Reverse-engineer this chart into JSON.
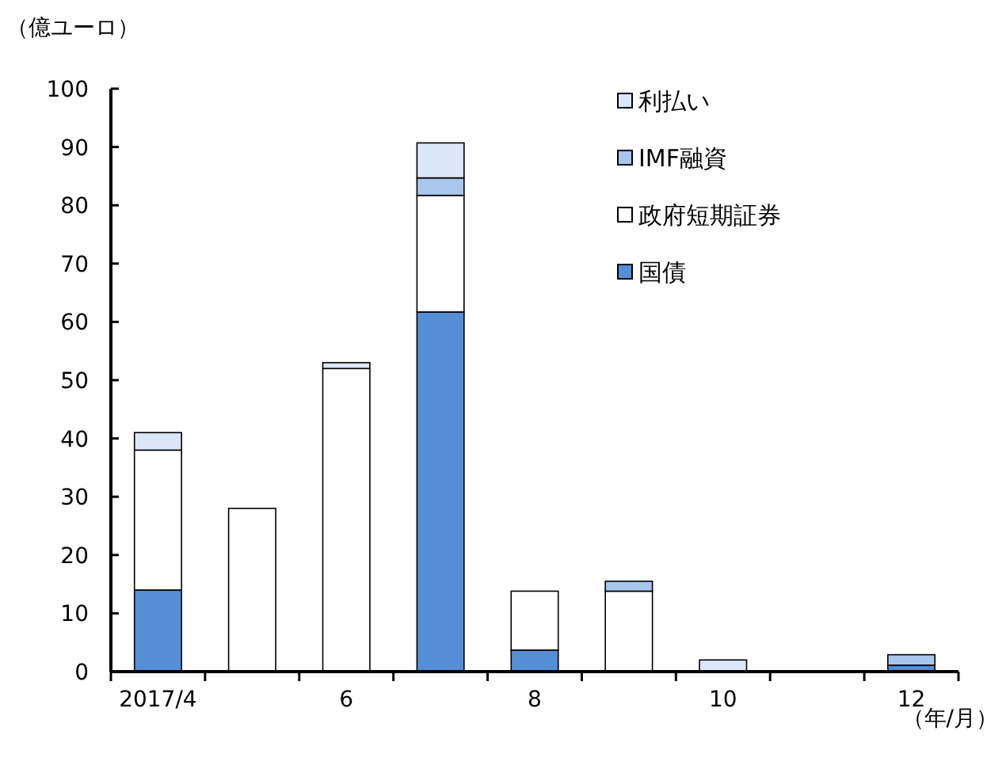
{
  "chart_data": {
    "type": "bar",
    "stacked": true,
    "ylabel": "（億ユーロ）",
    "xlabel": "（年/月）",
    "categories": [
      "2017/4",
      null,
      "6",
      null,
      "8",
      null,
      "10",
      null,
      "12"
    ],
    "series": [
      {
        "name": "国債",
        "color": "#558ed5",
        "values": [
          14,
          0,
          0,
          61.7,
          3.7,
          0,
          0,
          0,
          1.1
        ]
      },
      {
        "name": "政府短期証券",
        "color": "#ffffff",
        "values": [
          24,
          28,
          52,
          20,
          10.1,
          13.8,
          0,
          0,
          0
        ]
      },
      {
        "name": "IMF融資",
        "color": "#a9c6ec",
        "values": [
          0,
          0,
          0,
          3,
          0,
          1.7,
          0,
          0,
          1.8
        ]
      },
      {
        "name": "利払い",
        "color": "#dbe7f7",
        "values": [
          3,
          0,
          1,
          6,
          0,
          0,
          2,
          0,
          0
        ]
      }
    ],
    "ylim": [
      0,
      100
    ],
    "yticks": [
      0,
      10,
      20,
      30,
      40,
      50,
      60,
      70,
      80,
      90,
      100
    ],
    "legend": "top right"
  }
}
